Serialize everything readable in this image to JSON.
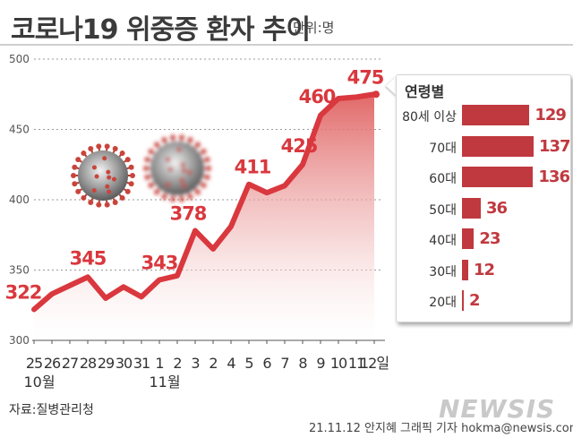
{
  "header": {
    "title": "코로나19 위중증 환자 추이",
    "unit": "단위:명"
  },
  "footer": {
    "source": "자료:질병관리청",
    "credit": "21.11.12 안지혜 그래픽 기자 hokma@newsis.com",
    "watermark": "NEWSIS"
  },
  "colors": {
    "accent": "#d9383e",
    "area_top": "#e06060",
    "bar": "#c0393f",
    "text": "#3b3b3b"
  },
  "chart_data": [
    {
      "type": "area",
      "title": "",
      "xlabel": "",
      "ylabel": "",
      "ylim": [
        300,
        500
      ],
      "yticks": [
        300,
        350,
        400,
        450,
        500
      ],
      "grid": "horizontal-dotted",
      "x_tick_labels": [
        "25",
        "26",
        "27",
        "28",
        "29",
        "30",
        "31",
        "1",
        "2",
        "3",
        "2",
        "4",
        "5",
        "6",
        "7",
        "8",
        "9",
        "10",
        "11",
        "12일"
      ],
      "x_group_labels": [
        {
          "label": "10월",
          "start_index": 0
        },
        {
          "label": "11월",
          "start_index": 7
        }
      ],
      "series": [
        {
          "values": [
            322,
            333,
            339,
            345,
            330,
            338,
            331,
            343,
            346,
            378,
            365,
            381,
            411,
            405,
            410,
            425,
            460,
            472,
            473,
            475
          ],
          "data_labels": [
            {
              "index": 0,
              "text": "322"
            },
            {
              "index": 3,
              "text": "345"
            },
            {
              "index": 7,
              "text": "343"
            },
            {
              "index": 9,
              "text": "378"
            },
            {
              "index": 12,
              "text": "411"
            },
            {
              "index": 15,
              "text": "425"
            },
            {
              "index": 16,
              "text": "460"
            },
            {
              "index": 19,
              "text": "475"
            }
          ]
        }
      ]
    },
    {
      "type": "bar",
      "orientation": "horizontal",
      "title": "연령별",
      "categories": [
        "80세 이상",
        "70대",
        "60대",
        "50대",
        "40대",
        "30대",
        "20대"
      ],
      "values": [
        129,
        137,
        136,
        36,
        23,
        12,
        2
      ]
    }
  ]
}
